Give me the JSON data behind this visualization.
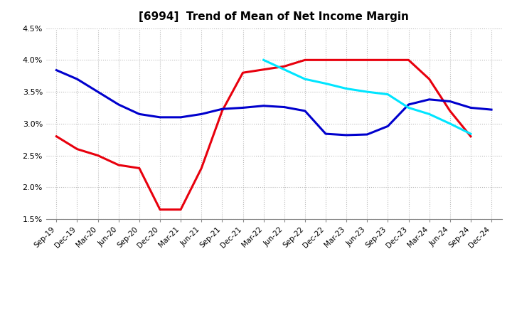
{
  "title": "[6994]  Trend of Mean of Net Income Margin",
  "ylim": [
    0.015,
    0.045
  ],
  "yticks": [
    0.015,
    0.02,
    0.025,
    0.03,
    0.035,
    0.04,
    0.045
  ],
  "x_labels": [
    "Sep-19",
    "Dec-19",
    "Mar-20",
    "Jun-20",
    "Sep-20",
    "Dec-20",
    "Mar-21",
    "Jun-21",
    "Sep-21",
    "Dec-21",
    "Mar-22",
    "Jun-22",
    "Sep-22",
    "Dec-22",
    "Mar-23",
    "Jun-23",
    "Sep-23",
    "Dec-23",
    "Mar-24",
    "Jun-24",
    "Sep-24",
    "Dec-24"
  ],
  "series_3y": [
    0.028,
    0.026,
    0.025,
    0.0235,
    0.023,
    0.0165,
    0.0165,
    0.023,
    0.032,
    0.038,
    0.0385,
    0.039,
    0.04,
    0.04,
    0.04,
    0.04,
    0.04,
    0.04,
    0.037,
    0.032,
    0.028,
    null
  ],
  "series_5y": [
    0.0384,
    0.037,
    0.035,
    0.033,
    0.0315,
    0.031,
    0.031,
    0.0315,
    0.0323,
    0.0325,
    0.0328,
    0.0326,
    0.032,
    0.0284,
    0.0282,
    0.0283,
    0.0296,
    0.033,
    0.0338,
    0.0335,
    0.0325,
    0.0322
  ],
  "series_7y": [
    null,
    null,
    null,
    null,
    null,
    null,
    null,
    null,
    null,
    null,
    0.04,
    0.0385,
    0.037,
    0.0363,
    0.0355,
    0.035,
    0.0346,
    0.0325,
    0.0315,
    0.03,
    0.0284,
    null
  ],
  "series_10y": [
    null,
    null,
    null,
    null,
    null,
    null,
    null,
    null,
    null,
    null,
    null,
    null,
    null,
    null,
    null,
    null,
    null,
    null,
    null,
    null,
    null,
    null
  ],
  "color_3y": "#e8000d",
  "color_5y": "#0000cd",
  "color_7y": "#00e5ff",
  "color_10y": "#008000",
  "background_color": "#ffffff",
  "grid_color": "#aaaaaa"
}
